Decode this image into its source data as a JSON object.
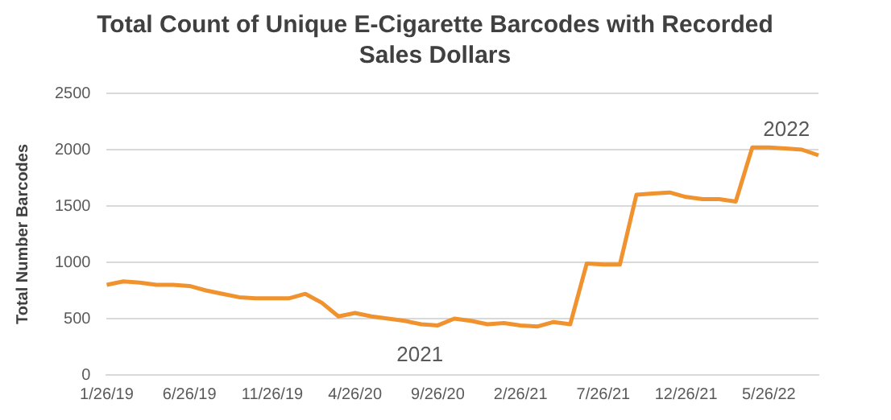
{
  "chart_data": {
    "type": "line",
    "title": "Total Count of Unique E-Cigarette Barcodes with Recorded Sales Dollars",
    "ylabel": "Total Number Barcodes",
    "categories": [
      "1/26/19",
      null,
      null,
      null,
      null,
      "6/26/19",
      null,
      null,
      null,
      null,
      "11/26/19",
      null,
      null,
      null,
      null,
      "4/26/20",
      null,
      null,
      null,
      null,
      "9/26/20",
      null,
      null,
      null,
      null,
      "2/26/21",
      null,
      null,
      null,
      null,
      "7/26/21",
      null,
      null,
      null,
      null,
      "12/26/21",
      null,
      null,
      null,
      null,
      "5/26/22",
      null,
      null,
      null
    ],
    "series": [
      {
        "color": "#f0922e",
        "values": [
          800,
          830,
          820,
          800,
          800,
          790,
          750,
          720,
          690,
          680,
          680,
          680,
          720,
          640,
          520,
          550,
          520,
          500,
          480,
          450,
          440,
          500,
          480,
          450,
          460,
          440,
          430,
          470,
          450,
          990,
          980,
          980,
          1600,
          1610,
          1620,
          1580,
          1560,
          1560,
          1540,
          2020,
          2020,
          2010,
          2000,
          1950
        ]
      }
    ],
    "ylim": [
      0,
      2500
    ],
    "yticks": [
      0,
      500,
      1000,
      1500,
      2000,
      2500
    ],
    "grid": "y",
    "legend": false,
    "marker": "none",
    "line_style": "solid",
    "annotations": [
      "2021",
      "2022"
    ]
  }
}
